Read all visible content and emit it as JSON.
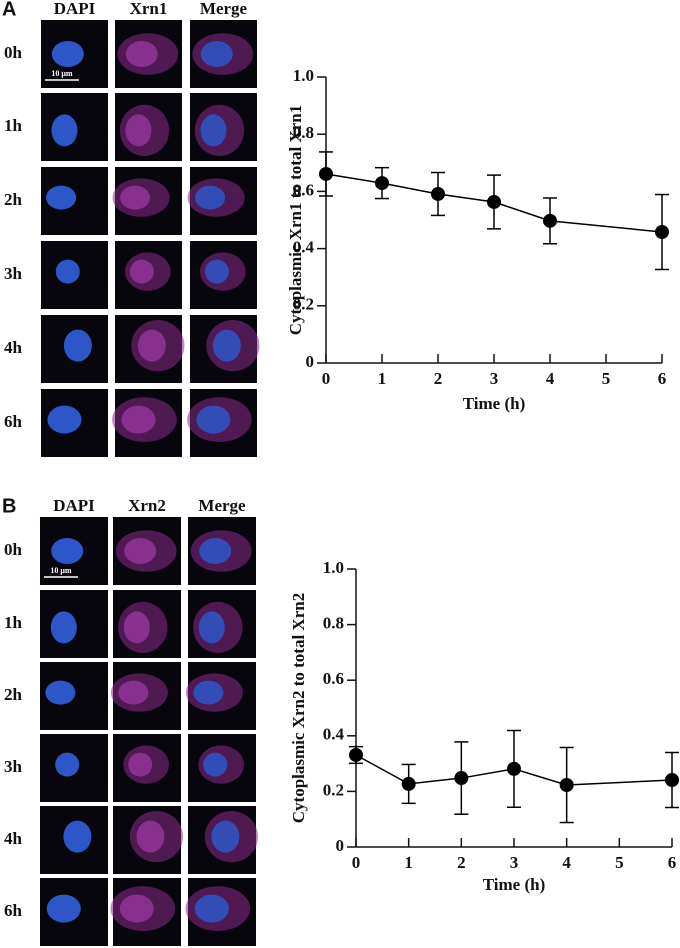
{
  "panels": [
    {
      "label": "A",
      "columns": [
        "DAPI",
        "Xrn1",
        "Merge"
      ],
      "rows": [
        "0h",
        "1h",
        "2h",
        "3h",
        "4h",
        "6h"
      ],
      "scale_bar": "10 μm"
    },
    {
      "label": "B",
      "columns": [
        "DAPI",
        "Xrn2",
        "Merge"
      ],
      "rows": [
        "0h",
        "1h",
        "2h",
        "3h",
        "4h",
        "6h"
      ],
      "scale_bar": "10 μm"
    }
  ],
  "chart_data": [
    {
      "type": "line",
      "xlabel": "Time (h)",
      "ylabel": "Cytoplasmic Xrn1 to total Xrn1",
      "x": [
        0,
        1,
        2,
        3,
        4,
        6
      ],
      "values": [
        0.661,
        0.629,
        0.591,
        0.563,
        0.497,
        0.458
      ],
      "errors": [
        0.077,
        0.054,
        0.075,
        0.094,
        0.08,
        0.131
      ],
      "color": "#000000",
      "xlim": [
        0,
        6
      ],
      "xticks": [
        0,
        1,
        2,
        3,
        4,
        5,
        6
      ],
      "ylim": [
        0,
        1
      ],
      "yticks": [
        0,
        0.2,
        0.4,
        0.6,
        0.8,
        {
          "value": 1,
          "label": "1.0"
        }
      ]
    },
    {
      "type": "line",
      "xlabel": "Time (h)",
      "ylabel": "Cytoplasmic Xrn2 to total Xrn2",
      "x": [
        0,
        1,
        2,
        3,
        4,
        6
      ],
      "values": [
        0.331,
        0.227,
        0.248,
        0.281,
        0.223,
        0.241
      ],
      "errors": [
        0.03,
        0.07,
        0.13,
        0.138,
        0.135,
        0.099
      ],
      "color": "#000000",
      "xlim": [
        0,
        6
      ],
      "xticks": [
        0,
        1,
        2,
        3,
        4,
        5,
        6
      ],
      "ylim": [
        0,
        1
      ],
      "yticks": [
        0,
        0.2,
        0.4,
        0.6,
        0.8,
        {
          "value": 1,
          "label": "1.0"
        }
      ]
    }
  ]
}
